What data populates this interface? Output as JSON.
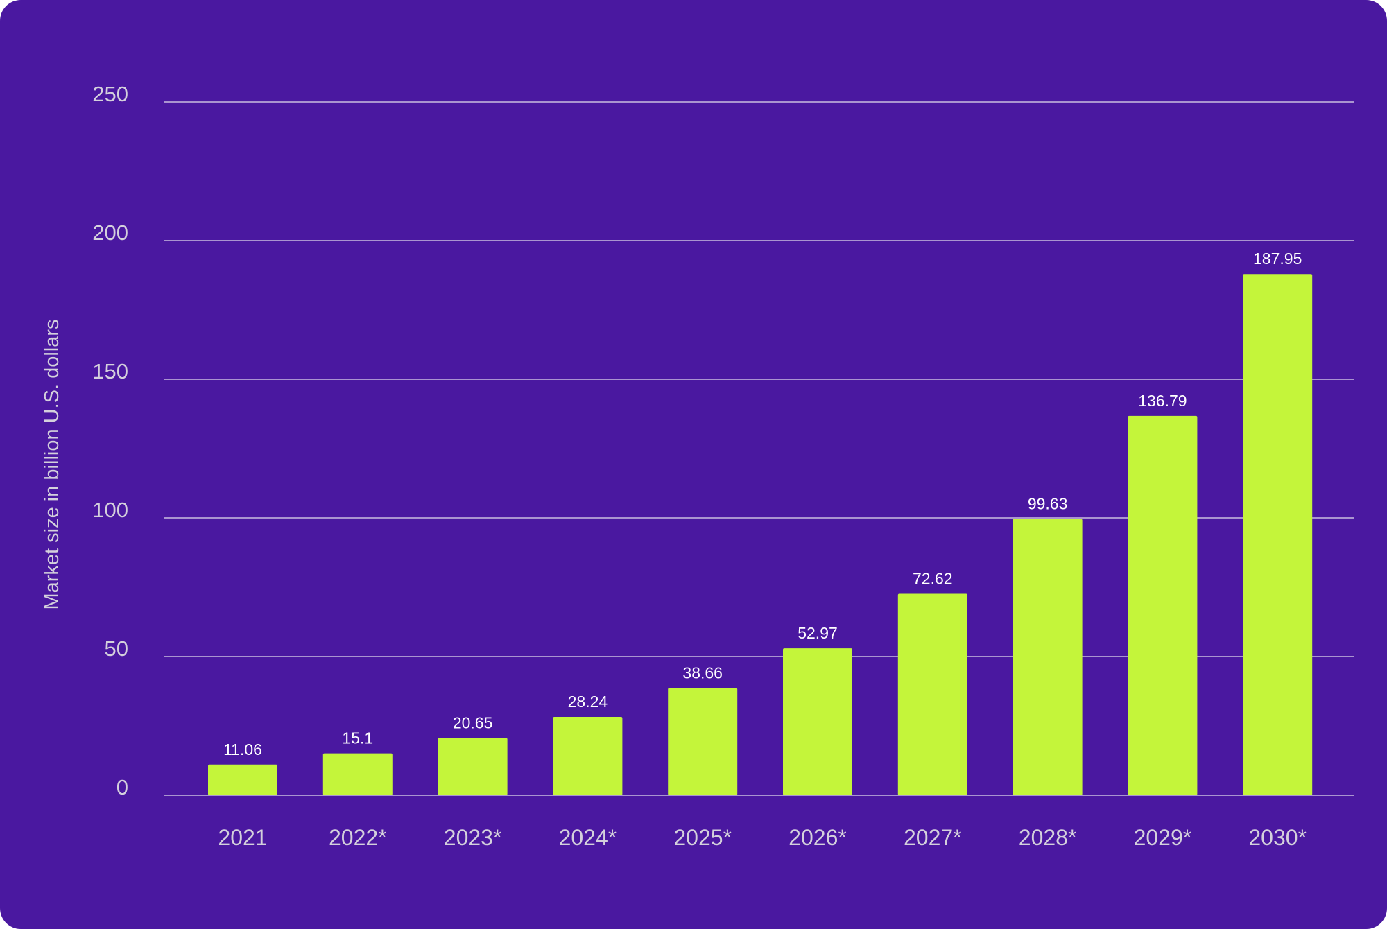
{
  "chart_data": {
    "type": "bar",
    "title": "",
    "xlabel": "",
    "ylabel": "Market size in billion U.S. dollars",
    "categories": [
      "2021",
      "2022*",
      "2023*",
      "2024*",
      "2025*",
      "2026*",
      "2027*",
      "2028*",
      "2029*",
      "2030*"
    ],
    "values": [
      11.06,
      15.1,
      20.65,
      28.24,
      38.66,
      52.97,
      72.62,
      99.63,
      136.79,
      187.95
    ],
    "data_labels": [
      "11.06",
      "15.1",
      "20.65",
      "28.24",
      "38.66",
      "52.97",
      "72.62",
      "99.63",
      "136.79",
      "187.95"
    ],
    "ylim": [
      0,
      250
    ],
    "yticks": [
      0,
      50,
      100,
      150,
      200,
      250
    ],
    "grid": true,
    "legend": "none"
  },
  "colors": {
    "background": "#4a18a0",
    "bar": "#c4f53a",
    "gridline": "#c9bde0",
    "tick_text": "#d4d0dc",
    "value_text": "#ffffff"
  }
}
